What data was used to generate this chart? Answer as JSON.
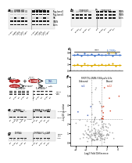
{
  "bg_color": "#ffffff",
  "band_dark": "#1a1a1a",
  "band_med": "#555555",
  "band_light": "#aaaaaa",
  "band_very_light": "#cccccc",
  "red_color": "#cc2200",
  "blue_color": "#2244aa",
  "orange_color": "#dd8800",
  "gray_color": "#999999",
  "cell_red": "#cc3333",
  "cell_red2": "#bb2222",
  "blue_scatter": "#4477cc",
  "orange_scatter": "#ddaa00",
  "panel_labels": [
    "a",
    "b",
    "c",
    "d",
    "e",
    "f",
    "g"
  ],
  "wb_gray_bg": "#e8e8e8",
  "wb_box_border": "#bbbbbb"
}
